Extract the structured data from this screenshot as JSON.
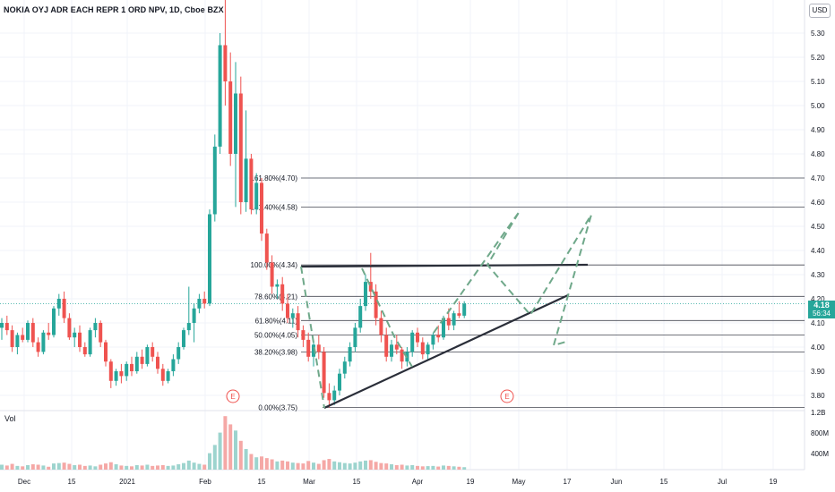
{
  "header": {
    "title": "NOKIA OYJ ADR EACH REPR 1 ORD NPV, 1D, Cboe BZX",
    "currency": "USD",
    "volume_label": "Vol"
  },
  "last_price": {
    "value": "4.18",
    "countdown": "56:34"
  },
  "colors": {
    "up": "#26a69a",
    "down": "#ef5350",
    "fib_line": "#434651",
    "trend": "#2a2e39",
    "projection": "#6fa88a",
    "earnings": "#ef5350"
  },
  "chart_data": {
    "type": "candlestick",
    "price_axis": {
      "min": 3.75,
      "max": 5.45,
      "ticks": [
        "5.30",
        "5.20",
        "5.10",
        "5.00",
        "4.90",
        "4.80",
        "4.70",
        "4.60",
        "4.50",
        "4.40",
        "4.30",
        "4.20",
        "4.10",
        "4.00",
        "3.90",
        "3.80"
      ]
    },
    "volume_axis": {
      "ticks": [
        "1.2B",
        "800M",
        "400M"
      ]
    },
    "time_axis": {
      "ticks": [
        "Dec",
        "15",
        "2021",
        "Feb",
        "15",
        "Mar",
        "15",
        "Apr",
        "19",
        "May",
        "17",
        "Jun",
        "15",
        "Jul",
        "19"
      ]
    },
    "fibonacci": [
      {
        "label": "161.80%(4.70)",
        "price": 4.7
      },
      {
        "label": "141.40%(4.58)",
        "price": 4.58
      },
      {
        "label": "100.00%(4.34)",
        "price": 4.34
      },
      {
        "label": "78.60%(4.21)",
        "price": 4.21
      },
      {
        "label": "61.80%(4.11)",
        "price": 4.11
      },
      {
        "label": "50.00%(4.05)",
        "price": 4.05
      },
      {
        "label": "38.20%(3.98)",
        "price": 3.98
      },
      {
        "label": "0.00%(3.75)",
        "price": 3.75
      }
    ],
    "earnings_marker": "E",
    "candles": [
      [
        4.08,
        4.12,
        4.03,
        4.1,
        120
      ],
      [
        4.1,
        4.13,
        4.05,
        4.07,
        100
      ],
      [
        4.07,
        4.09,
        3.98,
        4.0,
        140
      ],
      [
        4.0,
        4.06,
        3.97,
        4.05,
        90
      ],
      [
        4.05,
        4.08,
        4.02,
        4.03,
        80
      ],
      [
        4.03,
        4.11,
        4.02,
        4.1,
        110
      ],
      [
        4.1,
        4.12,
        4.0,
        4.02,
        130
      ],
      [
        4.02,
        4.04,
        3.96,
        3.98,
        120
      ],
      [
        3.98,
        4.07,
        3.97,
        4.06,
        100
      ],
      [
        4.06,
        4.1,
        4.03,
        4.05,
        70
      ],
      [
        4.05,
        4.17,
        4.04,
        4.16,
        150
      ],
      [
        4.16,
        4.22,
        4.13,
        4.2,
        160
      ],
      [
        4.2,
        4.23,
        4.1,
        4.12,
        170
      ],
      [
        4.12,
        4.14,
        4.03,
        4.04,
        140
      ],
      [
        4.04,
        4.08,
        4.0,
        4.06,
        110
      ],
      [
        4.06,
        4.09,
        3.98,
        4.0,
        120
      ],
      [
        4.0,
        4.02,
        3.96,
        3.97,
        90
      ],
      [
        3.97,
        4.08,
        3.96,
        4.07,
        100
      ],
      [
        4.07,
        4.12,
        4.04,
        4.1,
        80
      ],
      [
        4.1,
        4.11,
        4.0,
        4.02,
        120
      ],
      [
        4.02,
        4.03,
        3.92,
        3.94,
        150
      ],
      [
        3.94,
        3.95,
        3.83,
        3.86,
        180
      ],
      [
        3.86,
        3.91,
        3.84,
        3.9,
        130
      ],
      [
        3.9,
        3.93,
        3.85,
        3.88,
        100
      ],
      [
        3.88,
        3.94,
        3.86,
        3.93,
        90
      ],
      [
        3.93,
        3.96,
        3.88,
        3.9,
        80
      ],
      [
        3.9,
        3.98,
        3.89,
        3.96,
        110
      ],
      [
        3.96,
        3.99,
        3.91,
        3.93,
        100
      ],
      [
        3.93,
        4.01,
        3.92,
        4.0,
        120
      ],
      [
        4.0,
        4.02,
        3.94,
        3.96,
        90
      ],
      [
        3.96,
        3.98,
        3.89,
        3.91,
        100
      ],
      [
        3.91,
        3.93,
        3.84,
        3.86,
        110
      ],
      [
        3.86,
        3.91,
        3.85,
        3.9,
        90
      ],
      [
        3.9,
        3.97,
        3.88,
        3.95,
        100
      ],
      [
        3.95,
        4.02,
        3.93,
        4.0,
        130
      ],
      [
        4.0,
        4.08,
        3.99,
        4.07,
        160
      ],
      [
        4.07,
        4.25,
        4.05,
        4.1,
        220
      ],
      [
        4.1,
        4.18,
        4.02,
        4.16,
        170
      ],
      [
        4.16,
        4.22,
        4.14,
        4.2,
        140
      ],
      [
        4.2,
        4.23,
        4.16,
        4.18,
        120
      ],
      [
        4.18,
        4.57,
        4.17,
        4.55,
        400
      ],
      [
        4.55,
        4.88,
        4.52,
        4.83,
        600
      ],
      [
        4.83,
        5.3,
        4.8,
        5.25,
        900
      ],
      [
        5.25,
        5.45,
        5.0,
        5.1,
        1300
      ],
      [
        5.1,
        5.22,
        4.75,
        4.8,
        1100
      ],
      [
        4.8,
        5.18,
        4.58,
        5.05,
        950
      ],
      [
        5.05,
        5.12,
        4.55,
        4.6,
        700
      ],
      [
        4.6,
        4.98,
        4.56,
        4.78,
        500
      ],
      [
        4.78,
        4.8,
        4.55,
        4.57,
        380
      ],
      [
        4.57,
        4.72,
        4.55,
        4.68,
        300
      ],
      [
        4.68,
        4.7,
        4.44,
        4.47,
        320
      ],
      [
        4.47,
        4.49,
        4.32,
        4.35,
        280
      ],
      [
        4.35,
        4.38,
        4.22,
        4.25,
        250
      ],
      [
        4.25,
        4.28,
        4.2,
        4.26,
        200
      ],
      [
        4.26,
        4.29,
        4.15,
        4.18,
        220
      ],
      [
        4.18,
        4.22,
        4.1,
        4.12,
        200
      ],
      [
        4.12,
        4.16,
        4.08,
        4.14,
        170
      ],
      [
        4.14,
        4.17,
        4.04,
        4.07,
        160
      ],
      [
        4.07,
        4.09,
        4.0,
        4.03,
        150
      ],
      [
        4.03,
        4.06,
        3.94,
        3.96,
        210
      ],
      [
        3.96,
        4.03,
        3.92,
        4.01,
        170
      ],
      [
        4.01,
        4.05,
        3.95,
        3.98,
        140
      ],
      [
        3.98,
        4.0,
        3.79,
        3.81,
        230
      ],
      [
        3.81,
        3.85,
        3.75,
        3.78,
        260
      ],
      [
        3.78,
        3.84,
        3.76,
        3.82,
        200
      ],
      [
        3.82,
        3.91,
        3.8,
        3.89,
        180
      ],
      [
        3.89,
        3.96,
        3.87,
        3.94,
        160
      ],
      [
        3.94,
        4.02,
        3.92,
        4.0,
        150
      ],
      [
        4.0,
        4.1,
        3.98,
        4.08,
        170
      ],
      [
        4.08,
        4.2,
        4.06,
        4.17,
        200
      ],
      [
        4.17,
        4.3,
        4.15,
        4.27,
        220
      ],
      [
        4.27,
        4.39,
        4.2,
        4.23,
        230
      ],
      [
        4.23,
        4.26,
        4.09,
        4.12,
        190
      ],
      [
        4.12,
        4.15,
        4.02,
        4.05,
        160
      ],
      [
        4.05,
        4.08,
        3.94,
        3.96,
        150
      ],
      [
        3.96,
        4.03,
        3.94,
        4.01,
        130
      ],
      [
        4.01,
        4.05,
        3.97,
        3.99,
        110
      ],
      [
        3.99,
        4.0,
        3.91,
        3.94,
        120
      ],
      [
        3.94,
        4.0,
        3.92,
        3.98,
        100
      ],
      [
        3.98,
        4.07,
        3.96,
        4.06,
        110
      ],
      [
        4.06,
        4.08,
        4.0,
        4.02,
        90
      ],
      [
        4.02,
        4.04,
        3.95,
        3.97,
        80
      ],
      [
        3.97,
        4.02,
        3.95,
        4.01,
        85
      ],
      [
        4.01,
        4.06,
        3.99,
        4.05,
        90
      ],
      [
        4.05,
        4.09,
        4.02,
        4.04,
        75
      ],
      [
        4.04,
        4.13,
        4.03,
        4.12,
        100
      ],
      [
        4.12,
        4.16,
        4.07,
        4.09,
        90
      ],
      [
        4.09,
        4.15,
        4.07,
        4.14,
        80
      ],
      [
        4.14,
        4.19,
        4.12,
        4.13,
        70
      ],
      [
        4.13,
        4.19,
        4.12,
        4.18,
        60
      ]
    ]
  }
}
